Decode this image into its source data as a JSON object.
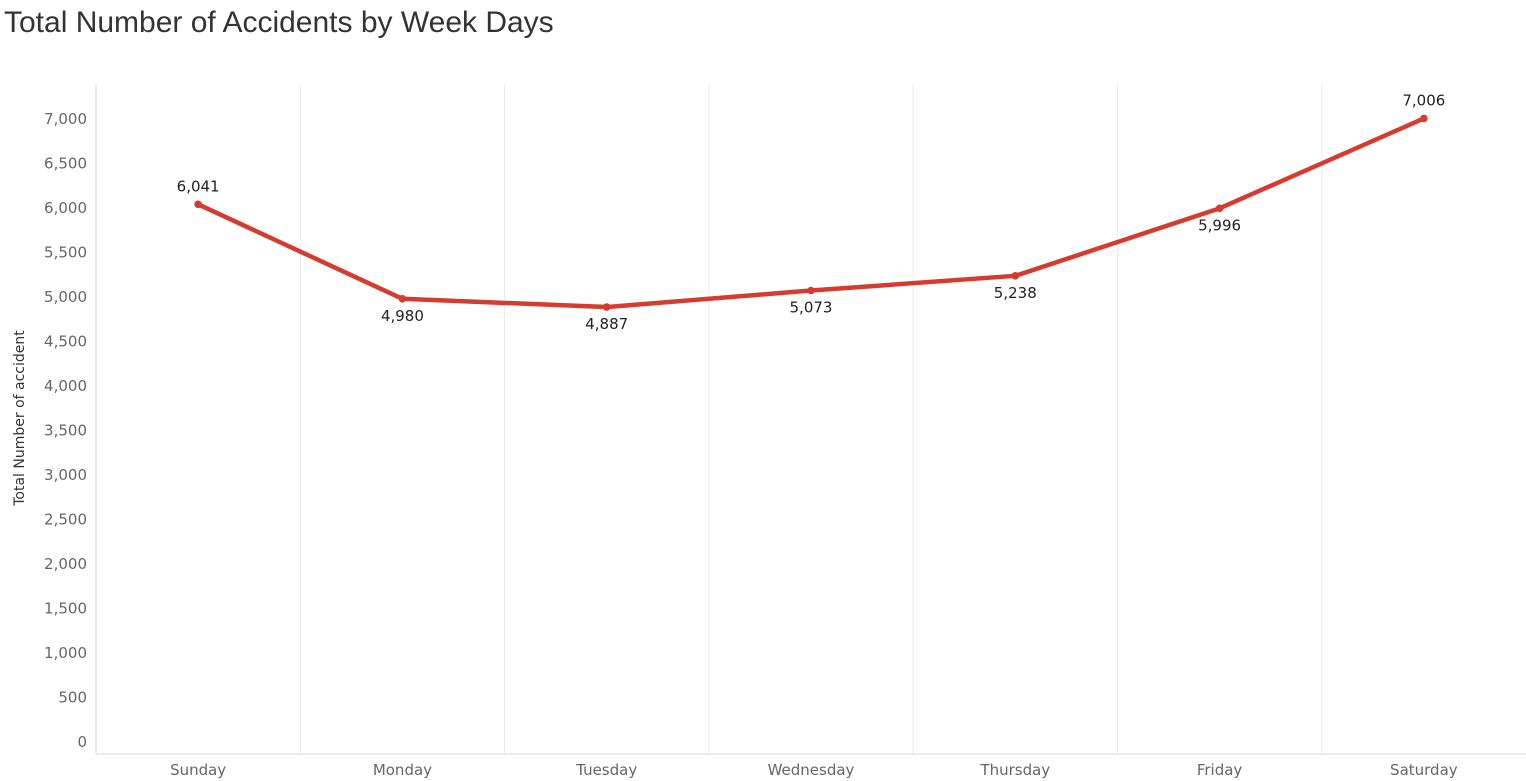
{
  "chart_data": {
    "type": "line",
    "title": "Total Number of Accidents by Week Days",
    "xlabel": "",
    "ylabel": "Total Number of accident",
    "categories": [
      "Sunday",
      "Monday",
      "Tuesday",
      "Wednesday",
      "Thursday",
      "Friday",
      "Saturday"
    ],
    "values": [
      6041,
      4980,
      4887,
      5073,
      5238,
      5996,
      7006
    ],
    "data_labels": [
      "6,041",
      "4,980",
      "4,887",
      "5,073",
      "5,238",
      "5,996",
      "7,006"
    ],
    "label_positions": [
      "above",
      "below",
      "below",
      "below",
      "below",
      "below",
      "above"
    ],
    "ylim": [
      0,
      7350
    ],
    "yticks": [
      0,
      500,
      1000,
      1500,
      2000,
      2500,
      3000,
      3500,
      4000,
      4500,
      5000,
      5500,
      6000,
      6500,
      7000
    ],
    "ytick_labels": [
      "0",
      "500",
      "1,000",
      "1,500",
      "2,000",
      "2,500",
      "3,000",
      "3,500",
      "4,000",
      "4,500",
      "5,000",
      "5,500",
      "6,000",
      "6,500",
      "7,000"
    ],
    "grid": "vertical",
    "legend": "none",
    "colors": {
      "line": "#d63b2f",
      "grid": "#ececec",
      "axis": "#d9d9d9"
    }
  }
}
